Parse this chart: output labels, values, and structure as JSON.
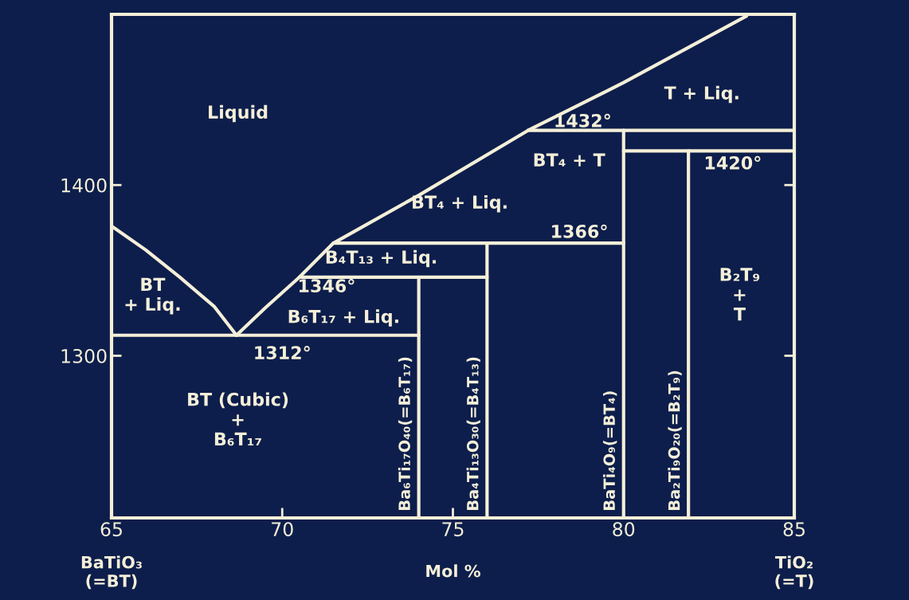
{
  "chart_data": {
    "type": "line",
    "xlabel": "Mol %",
    "xlim": [
      65,
      85
    ],
    "xticks": [
      65,
      70,
      75,
      80,
      85
    ],
    "ylim": [
      1205,
      1500
    ],
    "yticks": [
      1300,
      1400
    ],
    "marker": "none",
    "line_style": "solid",
    "series": [
      {
        "color": "#f4efd8",
        "x": [
          65,
          66,
          67,
          68,
          68.66
        ],
        "values": [
          1376,
          1362,
          1346,
          1329,
          1312
        ]
      },
      {
        "color": "#f4efd8",
        "x": [
          68.66,
          69.5,
          70.5,
          71.5,
          74,
          77.2,
          80,
          83.6
        ],
        "values": [
          1312,
          1328,
          1346,
          1366,
          1394,
          1432,
          1460,
          1499
        ]
      },
      {
        "color": "#f4efd8",
        "x": [
          65,
          74
        ],
        "values": [
          1312,
          1312
        ]
      },
      {
        "color": "#f4efd8",
        "x": [
          70.5,
          76
        ],
        "values": [
          1346,
          1346
        ]
      },
      {
        "color": "#f4efd8",
        "x": [
          71.5,
          80
        ],
        "values": [
          1366,
          1366
        ]
      },
      {
        "color": "#f4efd8",
        "x": [
          77.2,
          85
        ],
        "values": [
          1432,
          1432
        ]
      },
      {
        "color": "#f4efd8",
        "x": [
          80,
          85
        ],
        "values": [
          1420,
          1420
        ]
      },
      {
        "name": "Ba₆Ti₁₇O₄₀(=B₆T₁₇)",
        "color": "#f4efd8",
        "x": [
          74,
          74
        ],
        "values": [
          1205,
          1346
        ]
      },
      {
        "name": "Ba₄Ti₁₃O₃₀(=B₄T₁₃)",
        "color": "#f4efd8",
        "x": [
          76,
          76
        ],
        "values": [
          1205,
          1366
        ]
      },
      {
        "name": "BaTi₄O₉(=BT₄)",
        "color": "#f4efd8",
        "x": [
          80,
          80
        ],
        "values": [
          1205,
          1432
        ]
      },
      {
        "name": "Ba₂Ti₉O₂₀(=B₂T₉)",
        "color": "#f4efd8",
        "x": [
          81.9,
          81.9
        ],
        "values": [
          1205,
          1420
        ]
      }
    ],
    "annotations": [
      "Liquid",
      "T + Liq.",
      "1432°",
      "BT₄ + T",
      "1420°",
      "BT₄ + Liq.",
      "1366°",
      "B₄T₁₃ + Liq.",
      "1346°",
      "BT\n+ Liq.",
      "B₆T₁₇ + Liq.",
      "1312°",
      "BT (Cubic)\n+\nB₆T₁₇",
      "B₂T₉\n+\nT",
      "BaTiO₃\n(=BT)",
      "TiO₂\n(=T)"
    ]
  }
}
